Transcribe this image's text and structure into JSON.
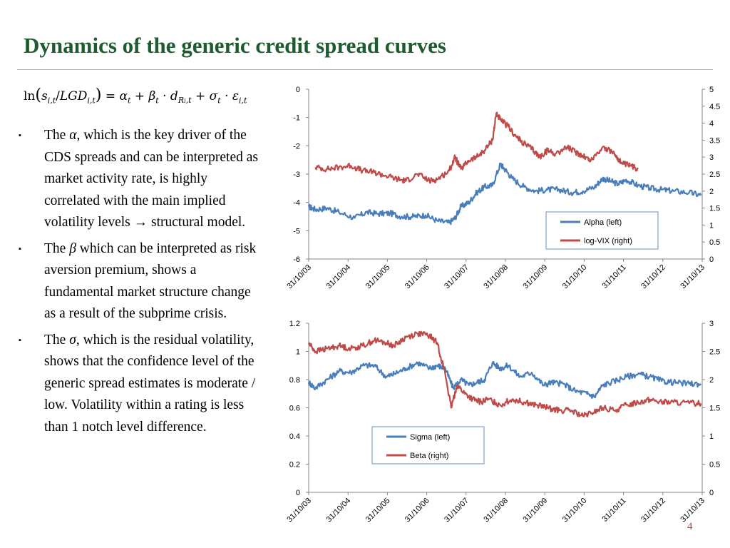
{
  "slide": {
    "title": "Dynamics of the generic credit spread curves",
    "page_number": "4"
  },
  "bullets": [
    {
      "pre": "The ",
      "sym": "α",
      "post": ", which is the key driver of the CDS spreads and can be interpreted as market activity rate, is highly correlated with the main implied volatility levels → structural model."
    },
    {
      "pre": "The ",
      "sym": "β",
      "post": " which can be interpreted as risk aversion premium, shows a fundamental market structure change as a result of the subprime crisis."
    },
    {
      "pre": "The ",
      "sym": "σ",
      "post": ", which is the residual volatility, shows that the confidence level of the generic spread estimates is moderate / low. Volatility within a rating is less than 1 notch level difference."
    }
  ],
  "colors": {
    "blue": "#4a7ebb",
    "red": "#be4b48",
    "title": "#1e5b2e"
  },
  "chart_data": [
    {
      "type": "line",
      "x_tick_labels": [
        "31/10/03",
        "31/10/04",
        "31/10/05",
        "31/10/06",
        "31/10/07",
        "31/10/08",
        "31/10/09",
        "31/10/10",
        "31/10/11",
        "31/10/12",
        "31/10/13"
      ],
      "left_axis": {
        "ylim": [
          -6,
          0
        ],
        "ticks": [
          "0",
          "-1",
          "-2",
          "-3",
          "-4",
          "-5",
          "-6"
        ]
      },
      "right_axis": {
        "ylim": [
          0,
          5
        ],
        "ticks": [
          "5",
          "4.5",
          "4",
          "3.5",
          "3",
          "2.5",
          "2",
          "1.5",
          "1",
          "0.5",
          "0"
        ]
      },
      "legend_position": "lower-right",
      "series": [
        {
          "name": "Alpha (left)",
          "axis": "left",
          "color": "#4a7ebb",
          "x": [
            2003.83,
            2004.0,
            2004.3,
            2004.6,
            2005.0,
            2005.3,
            2005.6,
            2005.9,
            2006.2,
            2006.5,
            2006.8,
            2007.1,
            2007.4,
            2007.55,
            2007.7,
            2007.9,
            2008.1,
            2008.3,
            2008.5,
            2008.7,
            2008.8,
            2009.0,
            2009.3,
            2009.6,
            2009.9,
            2010.2,
            2010.5,
            2010.8,
            2011.1,
            2011.3,
            2011.5,
            2011.7,
            2011.9,
            2012.2,
            2012.5,
            2012.8,
            2013.1,
            2013.5,
            2013.8
          ],
          "y": [
            -4.15,
            -4.25,
            -4.2,
            -4.35,
            -4.55,
            -4.35,
            -4.4,
            -4.38,
            -4.5,
            -4.5,
            -4.45,
            -4.65,
            -4.72,
            -4.55,
            -4.15,
            -4.0,
            -3.65,
            -3.45,
            -3.4,
            -2.65,
            -2.8,
            -3.15,
            -3.45,
            -3.6,
            -3.55,
            -3.55,
            -3.65,
            -3.6,
            -3.45,
            -3.15,
            -3.25,
            -3.35,
            -3.2,
            -3.4,
            -3.5,
            -3.55,
            -3.6,
            -3.65,
            -3.75
          ]
        },
        {
          "name": "log-VIX (right)",
          "axis": "right",
          "color": "#be4b48",
          "x": [
            2004.0,
            2004.3,
            2004.6,
            2004.9,
            2005.2,
            2005.5,
            2005.8,
            2006.1,
            2006.3,
            2006.6,
            2006.9,
            2007.1,
            2007.4,
            2007.55,
            2007.7,
            2007.9,
            2008.1,
            2008.3,
            2008.5,
            2008.6,
            2008.7,
            2008.9,
            2009.1,
            2009.3,
            2009.5,
            2009.7,
            2009.9,
            2010.1,
            2010.4,
            2010.6,
            2010.8,
            2011.0,
            2011.3,
            2011.6,
            2011.8,
            2012.0,
            2012.2
          ],
          "y": [
            2.7,
            2.65,
            2.7,
            2.75,
            2.6,
            2.55,
            2.45,
            2.35,
            2.3,
            2.5,
            2.3,
            2.35,
            2.6,
            3.0,
            2.65,
            2.9,
            3.0,
            3.2,
            3.5,
            4.3,
            4.1,
            3.9,
            3.6,
            3.4,
            3.25,
            3.0,
            3.2,
            3.1,
            3.3,
            3.15,
            3.05,
            2.9,
            3.3,
            3.1,
            2.8,
            2.75,
            2.65
          ]
        }
      ]
    },
    {
      "type": "line",
      "x_tick_labels": [
        "31/10/03",
        "31/10/04",
        "31/10/05",
        "31/10/06",
        "31/10/07",
        "31/10/08",
        "31/10/09",
        "31/10/10",
        "31/10/11",
        "31/10/12",
        "31/10/13"
      ],
      "left_axis": {
        "ylim": [
          0,
          1.2
        ],
        "ticks": [
          "1.2",
          "1",
          "0.8",
          "0.6",
          "0.4",
          "0.2",
          "0"
        ]
      },
      "right_axis": {
        "ylim": [
          0,
          3
        ],
        "ticks": [
          "3",
          "2.5",
          "2",
          "1.5",
          "1",
          "0.5",
          "0"
        ]
      },
      "legend_position": "lower-center",
      "series": [
        {
          "name": "Sigma (left)",
          "axis": "left",
          "color": "#4a7ebb",
          "x": [
            2003.83,
            2004.0,
            2004.3,
            2004.6,
            2004.9,
            2005.2,
            2005.5,
            2005.8,
            2006.0,
            2006.3,
            2006.6,
            2006.9,
            2007.1,
            2007.3,
            2007.5,
            2007.7,
            2007.9,
            2008.1,
            2008.3,
            2008.5,
            2008.7,
            2008.9,
            2009.2,
            2009.5,
            2009.8,
            2010.0,
            2010.3,
            2010.6,
            2010.9,
            2011.1,
            2011.3,
            2011.6,
            2011.9,
            2012.2,
            2012.5,
            2012.8,
            2013.1,
            2013.5,
            2013.8
          ],
          "y": [
            0.78,
            0.74,
            0.8,
            0.86,
            0.85,
            0.9,
            0.9,
            0.82,
            0.84,
            0.88,
            0.92,
            0.88,
            0.9,
            0.88,
            0.74,
            0.8,
            0.76,
            0.78,
            0.8,
            0.92,
            0.88,
            0.9,
            0.82,
            0.85,
            0.76,
            0.78,
            0.77,
            0.72,
            0.7,
            0.68,
            0.76,
            0.79,
            0.82,
            0.84,
            0.82,
            0.79,
            0.78,
            0.77,
            0.77
          ]
        },
        {
          "name": "Beta (right)",
          "axis": "right",
          "color": "#be4b48",
          "x": [
            2003.83,
            2004.0,
            2004.3,
            2004.6,
            2004.9,
            2005.2,
            2005.5,
            2005.8,
            2006.0,
            2006.3,
            2006.6,
            2006.9,
            2007.1,
            2007.3,
            2007.45,
            2007.6,
            2007.8,
            2008.0,
            2008.2,
            2008.4,
            2008.7,
            2009.0,
            2009.3,
            2009.6,
            2009.9,
            2010.2,
            2010.5,
            2010.8,
            2011.0,
            2011.3,
            2011.6,
            2011.9,
            2012.2,
            2012.5,
            2012.8,
            2013.1,
            2013.5,
            2013.8
          ],
          "y": [
            2.65,
            2.5,
            2.55,
            2.6,
            2.55,
            2.6,
            2.7,
            2.65,
            2.6,
            2.75,
            2.82,
            2.78,
            2.65,
            2.1,
            1.5,
            1.9,
            1.75,
            1.65,
            1.6,
            1.65,
            1.55,
            1.65,
            1.6,
            1.55,
            1.5,
            1.45,
            1.45,
            1.35,
            1.4,
            1.5,
            1.45,
            1.55,
            1.6,
            1.65,
            1.6,
            1.6,
            1.58,
            1.58
          ]
        }
      ]
    }
  ]
}
